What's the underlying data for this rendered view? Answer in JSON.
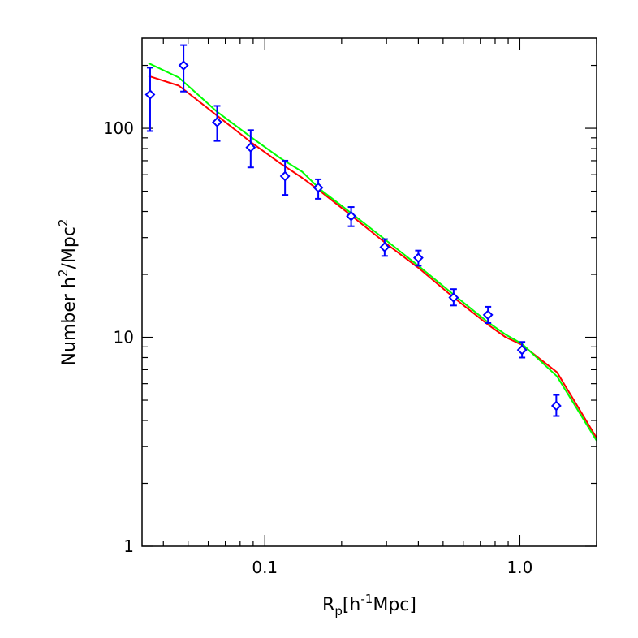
{
  "chart_data": {
    "type": "line",
    "xscale": "log",
    "yscale": "log",
    "xlim": [
      0.033,
      2.0
    ],
    "ylim": [
      1,
      270
    ],
    "grid": false,
    "xlabel": {
      "main": "R",
      "sub": "p",
      "rest": "[h",
      "sup": "-1",
      "end": "Mpc]"
    },
    "ylabel": {
      "a": "Number  h",
      "sup1": "2",
      "b": "/Mpc",
      "sup2": "2"
    },
    "x_ticks": [
      {
        "value": 0.1,
        "label": "0.1"
      },
      {
        "value": 1.0,
        "label": "1.0"
      }
    ],
    "y_ticks": [
      {
        "value": 1,
        "label": "1"
      },
      {
        "value": 10,
        "label": "10"
      },
      {
        "value": 100,
        "label": "100"
      }
    ],
    "series": [
      {
        "kind": "line",
        "color": "#ff0000",
        "x": [
          0.035,
          0.046,
          0.065,
          0.088,
          0.115,
          0.14,
          0.165,
          0.22,
          0.3,
          0.4,
          0.55,
          0.75,
          0.88,
          1.02,
          1.4,
          2.0
        ],
        "y": [
          178,
          160,
          115,
          86,
          68,
          58,
          50,
          38,
          28,
          21.5,
          15.5,
          11.5,
          10.0,
          9.2,
          6.8,
          3.3
        ]
      },
      {
        "kind": "line",
        "color": "#00ff00",
        "x": [
          0.035,
          0.046,
          0.065,
          0.088,
          0.115,
          0.14,
          0.165,
          0.22,
          0.3,
          0.4,
          0.55,
          0.75,
          0.88,
          1.02,
          1.4,
          2.0
        ],
        "y": [
          205,
          175,
          120,
          91,
          72,
          62,
          51,
          39,
          29,
          22,
          16,
          11.8,
          10.3,
          9.3,
          6.5,
          3.2
        ]
      },
      {
        "kind": "errorbar",
        "color": "#0000ff",
        "x": [
          0.0355,
          0.048,
          0.065,
          0.088,
          0.12,
          0.162,
          0.218,
          0.295,
          0.4,
          0.55,
          0.75,
          1.02,
          1.39
        ],
        "y": [
          145,
          200,
          107,
          81,
          59,
          52,
          38,
          27,
          24,
          15.5,
          12.8,
          8.7,
          4.7
        ],
        "ylow": [
          97,
          150,
          87,
          65,
          48,
          46,
          34,
          24.5,
          22,
          14.2,
          11.7,
          8.0,
          4.2
        ],
        "yhigh": [
          195,
          250,
          128,
          98,
          70,
          57,
          42,
          29.5,
          26,
          17,
          14,
          9.5,
          5.3
        ]
      }
    ]
  }
}
